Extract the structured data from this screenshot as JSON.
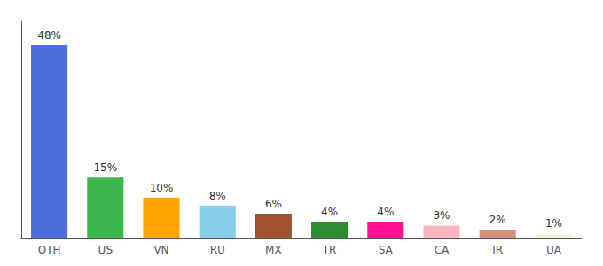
{
  "chart_data": {
    "type": "bar",
    "categories": [
      "OTH",
      "US",
      "VN",
      "RU",
      "MX",
      "TR",
      "SA",
      "CA",
      "IR",
      "UA"
    ],
    "values": [
      48,
      15,
      10,
      8,
      6,
      4,
      4,
      3,
      2,
      1
    ],
    "value_labels": [
      "48%",
      "15%",
      "10%",
      "8%",
      "6%",
      "4%",
      "4%",
      "3%",
      "2%",
      "1%"
    ],
    "colors": [
      "#4a6fdc",
      "#3cb54a",
      "#ffa500",
      "#87ceeb",
      "#a0522d",
      "#2e8b2e",
      "#ff1493",
      "#ffb6c1",
      "#d4907a",
      "#f5f0d8"
    ],
    "ylim": [
      0,
      54
    ],
    "data_labels": true,
    "tick_labels": "x",
    "grid": false
  }
}
